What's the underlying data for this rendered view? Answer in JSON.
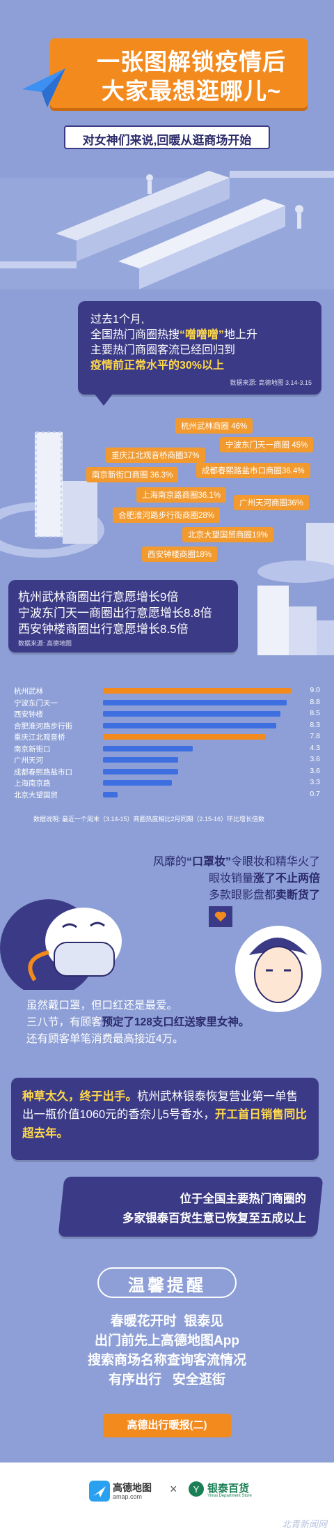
{
  "header": {
    "title_line1": "一张图解锁疫情后",
    "title_line2": "大家最想逛哪儿~",
    "subtitle": "对女神们来说,回暖从逛商场开始"
  },
  "intro": {
    "line1": "过去1个月,",
    "line2_a": "全国热门商圈热搜",
    "line2_hl": "“噌噌噌”",
    "line2_b": "地上升",
    "line3": "主要热门商圈客流已经回归到",
    "line4": "疫情前正常水平的30%以上",
    "source": "数据来源: 高德地图 3.14-3.15"
  },
  "recovery_tags": [
    {
      "label": "杭州武林商圈 46%"
    },
    {
      "label": "宁波东门天一商圈 45%"
    },
    {
      "label": "重庆江北观音桥商圈37%"
    },
    {
      "label": "南京新街口商圈 36.3%"
    },
    {
      "label": "成都春熙路盐市口商圈36.4%"
    },
    {
      "label": "上海南京路商圈36.1%"
    },
    {
      "label": "广州天河商圈36%"
    },
    {
      "label": "合肥淮河路步行街商圈28%"
    },
    {
      "label": "北京大望国贸商圈19%"
    },
    {
      "label": "西安钟楼商圈18%"
    }
  ],
  "growth": {
    "line1": "杭州武林商圈出行意愿增长9倍",
    "line2": "宁波东门天一商圈出行意愿增长8.8倍",
    "line3": "西安钟楼商圈出行意愿增长8.5倍",
    "source": "数据来源: 高德地图"
  },
  "chart_data": {
    "type": "bar",
    "orientation": "horizontal",
    "categories": [
      "杭州武林",
      "宁波东门天一",
      "西安钟楼",
      "合肥淮河路步行街",
      "重庆江北观音桥",
      "南京新街口",
      "广州天河",
      "成都春熙路盐市口",
      "上海南京路",
      "北京大望国贸"
    ],
    "values": [
      9.0,
      8.8,
      8.5,
      8.3,
      7.8,
      4.3,
      3.6,
      3.6,
      3.3,
      0.7
    ],
    "value_labels": [
      "9.0",
      "8.8",
      "8.5",
      "8.3",
      "7.8",
      "4.3",
      "3.6",
      "3.6",
      "3.3",
      "0.7"
    ],
    "colors": [
      "#f28a1e",
      "#3d6fe0",
      "#3d6fe0",
      "#3d6fe0",
      "#f28a1e",
      "#3d6fe0",
      "#3d6fe0",
      "#3d6fe0",
      "#3d6fe0",
      "#3d6fe0"
    ],
    "note": "数据说明: 最近一个周末（3.14-15）商圈热度相比2月同期（2.15-16）环比增长倍数"
  },
  "makeup": {
    "line1_a": "风靡的",
    "line1_b": "“口罩妆”",
    "line1_c": "令眼妆和精华火了",
    "line2_a": "眼妆销量",
    "line2_b": "涨了不止两倍",
    "line3_a": "多款眼影盘都",
    "line3_b": "卖断货了"
  },
  "lipstick": {
    "line1": "虽然戴口罩，但口红还是最爱。",
    "line2_a": "三八节，有顾客",
    "line2_b": "预定了128支口红送家里女神。",
    "line3": "还有顾客单笔消费最高接近4万。"
  },
  "perfume": {
    "part1": "种草太久，终于出手。",
    "part2": "杭州武林银泰恢复营业第一单售出一瓶价值1060元的香奈儿5号香水，",
    "part3": "开工首日销售同比超去年。"
  },
  "yintai": {
    "line1": "位于全国主要热门商圈的",
    "line2": "多家银泰百货生意已恢复至五成以上"
  },
  "reminder": {
    "title": "温馨提醒",
    "line1": "春暖花开时  银泰见",
    "line2": "出门前先上高德地图App",
    "line3": "搜索商场名称查询客流情况",
    "line4": "有序出行   安全逛街"
  },
  "footer": {
    "badge": "高德出行暖报(二)",
    "brand1": "高德地图",
    "brand1_url": "amap.com",
    "times": "×",
    "brand2": "银泰百货",
    "brand2_sub": "Yintai Department Store",
    "watermark": "北青新闻网"
  },
  "colors": {
    "background": "#8d9fd6",
    "panel": "#3b3a86",
    "orange": "#f28a1e",
    "highlight": "#ffd94a",
    "bar_blue": "#3d6fe0"
  }
}
